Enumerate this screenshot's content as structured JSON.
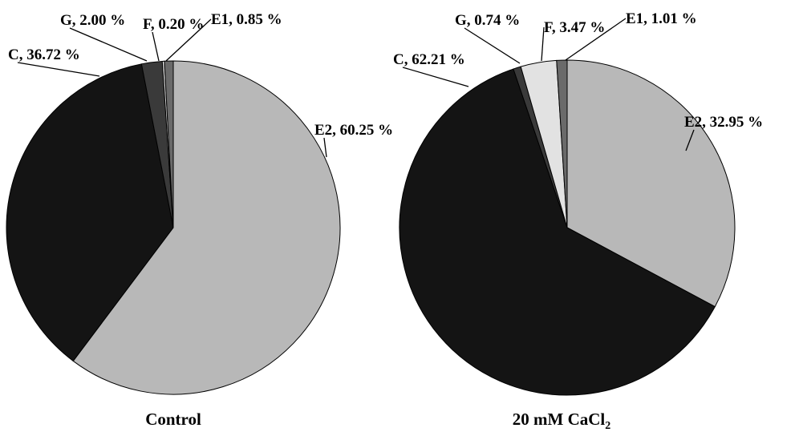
{
  "chart_data": [
    {
      "type": "pie",
      "title": "Control",
      "title_subscript": "",
      "slices": [
        {
          "label": "E2",
          "value": 60.25,
          "text": "E2, 60.25 %",
          "color": "#b8b8b8"
        },
        {
          "label": "C",
          "value": 36.72,
          "text": "C, 36.72 %",
          "color": "#141414"
        },
        {
          "label": "G",
          "value": 2.0,
          "text": "G, 2.00 %",
          "color": "#3a3a3a"
        },
        {
          "label": "F",
          "value": 0.2,
          "text": "F, 0.20 %",
          "color": "#e2e2e2"
        },
        {
          "label": "E1",
          "value": 0.85,
          "text": "E1, 0.85 %",
          "color": "#6a6a6a"
        }
      ]
    },
    {
      "type": "pie",
      "title": "20 mM CaCl",
      "title_subscript": "2",
      "slices": [
        {
          "label": "E2",
          "value": 32.95,
          "text": "E2, 32.95 %",
          "color": "#b8b8b8"
        },
        {
          "label": "C",
          "value": 62.21,
          "text": "C, 62.21 %",
          "color": "#141414"
        },
        {
          "label": "G",
          "value": 0.74,
          "text": "G, 0.74 %",
          "color": "#3a3a3a"
        },
        {
          "label": "F",
          "value": 3.47,
          "text": "F, 3.47 %",
          "color": "#e2e2e2"
        },
        {
          "label": "E1",
          "value": 1.01,
          "text": "E1, 1.01 %",
          "color": "#6a6a6a"
        }
      ]
    }
  ]
}
